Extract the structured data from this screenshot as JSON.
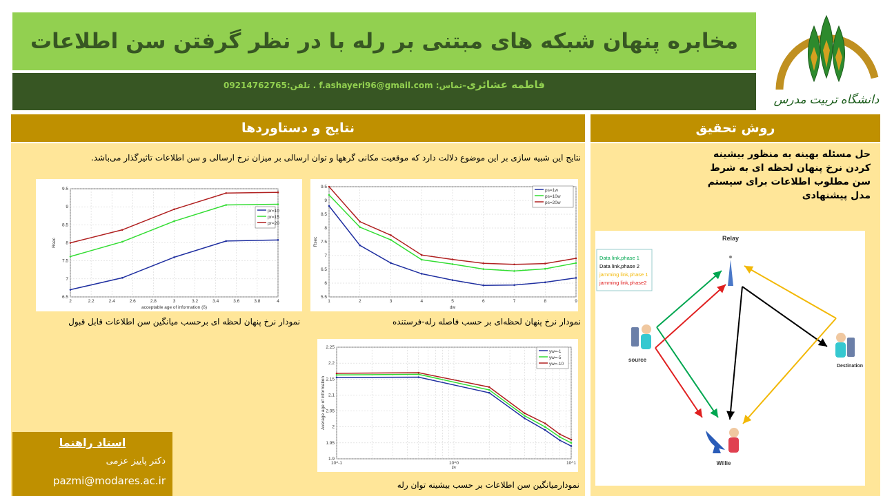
{
  "header": {
    "title": "مخابره پنهان شبکه های مبتنی بر رله با در نظر گرفتن سن اطلاعات",
    "author_name": "فاطمه عشائری",
    "contact_label": "–تماس:",
    "email": "f.ashayeri96@gmail.com",
    "phone_label": " . تلفن:",
    "phone": "09214762765",
    "logo_text": "دانشگاه تربیت مدرس"
  },
  "colors": {
    "title_bg": "#92d050",
    "title_text": "#375623",
    "section_bg": "#bf9000",
    "panel_bg": "#ffe699"
  },
  "results": {
    "heading": "نتایج و دستاوردها",
    "intro": "نتایج این شبیه سازی بر این موضوع دلالت دارد که موقعیت مکانی گرهها و توان ارسالی بر میزان نرخ ارسالی و سن اطلاعات  تاثیرگذار می‌باشد.",
    "caption_1": "نمودار نرخ پنهان لحظه ای برحسب میانگین سن اطلاعات قابل قبول",
    "caption_2": "نمودار نرخ پنهان لحظه‌ای بر حسب فاصله رله-فرستنده",
    "caption_3": "نمودارمیانگین سن اطلاعات بر حسب بیشینه توان رله"
  },
  "method": {
    "heading": "روش تحقیق",
    "text": "حل مسئله بهینه به منظور بیشینه کردن نرخ پنهان لحظه ای به شرط سن مطلوب اطلاعات برای سیستم مدل پیشنهادی",
    "diagram": {
      "nodes": {
        "relay": "Relay",
        "source": "source",
        "destination": "Destination",
        "willie": "Willie"
      },
      "legend": [
        {
          "label": "Data link,phase 1",
          "color": "#00a650"
        },
        {
          "label": "Data link,phase 2",
          "color": "#000000"
        },
        {
          "label": "jamming link,phase 1",
          "color": "#f2b807"
        },
        {
          "label": "jamming link,phase2",
          "color": "#e02020"
        }
      ]
    }
  },
  "advisor": {
    "heading": "استاد راهنما",
    "name": "دکتر پاییز عزمی",
    "email": "pazmi@modares.ac.ir"
  },
  "chart_data": [
    {
      "type": "line",
      "xlabel": "acceptable age of information (δ)",
      "ylabel": "Rsec",
      "xlim": [
        2,
        4
      ],
      "ylim": [
        6.5,
        9.5
      ],
      "grid": true,
      "legend": "right",
      "xticks": [
        2,
        2.2,
        2.4,
        2.6,
        2.8,
        3,
        3.2,
        3.4,
        3.6,
        3.8,
        4
      ],
      "yticks": [
        6.5,
        7,
        7.5,
        8,
        8.5,
        9,
        9.5
      ],
      "x": [
        2,
        2.5,
        3,
        3.5,
        4
      ],
      "series": [
        {
          "name": "pr=10",
          "color": "#1f2fa0",
          "values": [
            6.7,
            7.03,
            7.6,
            8.05,
            8.08
          ]
        },
        {
          "name": "pr=15",
          "color": "#33dd33",
          "values": [
            7.62,
            8.03,
            8.6,
            9.05,
            9.07
          ]
        },
        {
          "name": "pr=20",
          "color": "#b02020",
          "values": [
            8.0,
            8.36,
            8.93,
            9.38,
            9.4
          ]
        }
      ]
    },
    {
      "type": "line",
      "xlabel": "dw",
      "ylabel": "Rsec",
      "xlim": [
        1,
        9
      ],
      "ylim": [
        5.5,
        9.5
      ],
      "grid": true,
      "legend": "top-right",
      "xticks": [
        1,
        2,
        3,
        4,
        5,
        6,
        7,
        8,
        9
      ],
      "yticks": [
        5.5,
        6,
        6.5,
        7,
        7.5,
        8,
        8.5,
        9,
        9.5
      ],
      "x": [
        1,
        2,
        3,
        4,
        5,
        6,
        7,
        8,
        9
      ],
      "series": [
        {
          "name": "ps=1w",
          "color": "#1f2fa0",
          "values": [
            8.8,
            7.37,
            6.73,
            6.34,
            6.11,
            5.92,
            5.93,
            6.03,
            6.19
          ]
        },
        {
          "name": "ps=10w",
          "color": "#33dd33",
          "values": [
            9.2,
            8.03,
            7.57,
            6.85,
            6.69,
            6.51,
            6.44,
            6.52,
            6.73
          ]
        },
        {
          "name": "ps=20w",
          "color": "#b02020",
          "values": [
            9.5,
            8.23,
            7.74,
            7.02,
            6.86,
            6.72,
            6.68,
            6.71,
            6.9
          ]
        }
      ]
    },
    {
      "type": "line",
      "xlabel": "Pr",
      "ylabel": "Average age of information",
      "xscale": "log",
      "xlim": [
        0.1,
        10
      ],
      "ylim": [
        1.9,
        2.25
      ],
      "grid": true,
      "legend": "top-right",
      "xticks": [
        0.1,
        1,
        10
      ],
      "xticklabels": [
        "10^-1",
        "10^0",
        "10^1"
      ],
      "yticks": [
        1.9,
        1.95,
        2,
        2.05,
        2.1,
        2.15,
        2.2,
        2.25
      ],
      "x": [
        0.1,
        0.5,
        2,
        4,
        6,
        8,
        10
      ],
      "series": [
        {
          "name": "yw=-1",
          "color": "#1f2fa0",
          "values": [
            2.155,
            2.156,
            2.107,
            2.027,
            1.99,
            1.958,
            1.94
          ]
        },
        {
          "name": "yw=-5",
          "color": "#33dd33",
          "values": [
            2.163,
            2.165,
            2.116,
            2.035,
            2.0,
            1.968,
            1.95
          ]
        },
        {
          "name": "yw=-10",
          "color": "#b02020",
          "values": [
            2.168,
            2.17,
            2.125,
            2.043,
            2.011,
            1.977,
            1.96
          ]
        }
      ]
    }
  ]
}
